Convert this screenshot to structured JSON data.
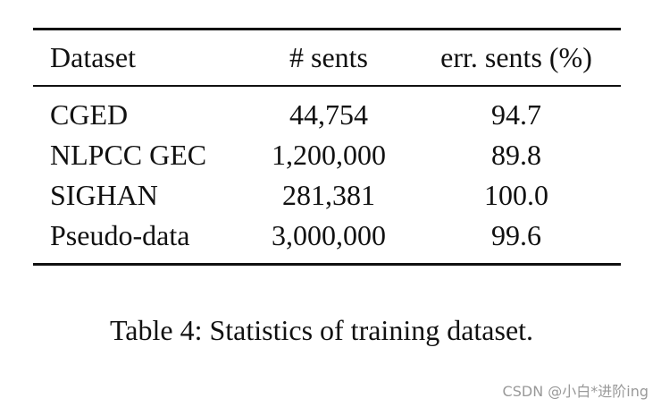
{
  "table": {
    "header": [
      "Dataset",
      "# sents",
      "err. sents (%)"
    ],
    "rows": [
      [
        "CGED",
        "44,754",
        "94.7"
      ],
      [
        "NLPCC GEC",
        "1,200,000",
        "89.8"
      ],
      [
        "SIGHAN",
        "281,381",
        "100.0"
      ],
      [
        "Pseudo-data",
        "3,000,000",
        "99.6"
      ]
    ]
  },
  "caption": "Table 4: Statistics of training dataset.",
  "watermark": "CSDN @小白*进阶ing"
}
